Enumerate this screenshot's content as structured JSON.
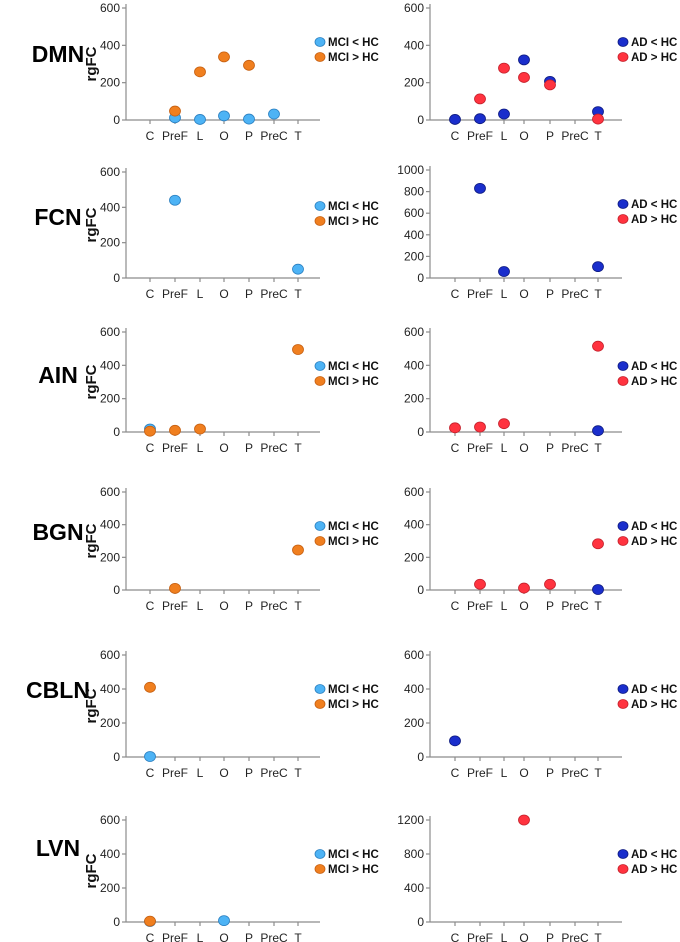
{
  "figure": {
    "network_labels": [
      "DMN",
      "FCN",
      "AIN",
      "BGN",
      "CBLN",
      "LVN"
    ],
    "y_axis_label": "rgFC",
    "colors": {
      "mci_lt_hc": "#4db3f5",
      "mci_gt_hc": "#f07f1f",
      "ad_lt_hc": "#1a2ecc",
      "ad_gt_hc": "#ff333f",
      "axis": "#8c8c8c"
    }
  },
  "chart_data": [
    {
      "type": "scatter",
      "network": "DMN",
      "group": "MCI",
      "categories": [
        "C",
        "PreF",
        "L",
        "O",
        "P",
        "PreC",
        "T"
      ],
      "ylabel": "rgFC",
      "yticks": [
        0,
        200,
        400,
        600
      ],
      "ylim": [
        0,
        620
      ],
      "legend": [
        "MCI < HC",
        "MCI > HC"
      ],
      "series": [
        {
          "name": "MCI < HC",
          "values": [
            null,
            12,
            3,
            22,
            5,
            32,
            null
          ]
        },
        {
          "name": "MCI > HC",
          "values": [
            null,
            48,
            258,
            338,
            293,
            null,
            null
          ]
        }
      ]
    },
    {
      "type": "scatter",
      "network": "DMN",
      "group": "AD",
      "categories": [
        "C",
        "PreF",
        "L",
        "O",
        "P",
        "PreC",
        "T"
      ],
      "ylabel": "",
      "yticks": [
        0,
        200,
        400,
        600
      ],
      "ylim": [
        0,
        620
      ],
      "legend": [
        "AD < HC",
        "AD > HC"
      ],
      "series": [
        {
          "name": "AD < HC",
          "values": [
            3,
            7,
            32,
            322,
            207,
            null,
            45
          ]
        },
        {
          "name": "AD > HC",
          "values": [
            null,
            113,
            278,
            228,
            188,
            null,
            5
          ]
        }
      ]
    },
    {
      "type": "scatter",
      "network": "FCN",
      "group": "MCI",
      "categories": [
        "C",
        "PreF",
        "L",
        "O",
        "P",
        "PreC",
        "T"
      ],
      "ylabel": "rgFC",
      "yticks": [
        0,
        200,
        400,
        600
      ],
      "ylim": [
        0,
        620
      ],
      "legend": [
        "MCI < HC",
        "MCI > HC"
      ],
      "series": [
        {
          "name": "MCI < HC",
          "values": [
            null,
            440,
            null,
            null,
            null,
            null,
            50
          ]
        },
        {
          "name": "MCI > HC",
          "values": [
            null,
            null,
            null,
            null,
            null,
            null,
            null
          ]
        }
      ]
    },
    {
      "type": "scatter",
      "network": "FCN",
      "group": "AD",
      "categories": [
        "C",
        "PreF",
        "L",
        "O",
        "P",
        "PreC",
        "T"
      ],
      "ylabel": "",
      "yticks": [
        0,
        200,
        400,
        600,
        800,
        1000
      ],
      "ylim": [
        0,
        1020
      ],
      "legend": [
        "AD < HC",
        "AD > HC"
      ],
      "series": [
        {
          "name": "AD < HC",
          "values": [
            null,
            830,
            60,
            null,
            null,
            null,
            105
          ]
        },
        {
          "name": "AD > HC",
          "values": [
            null,
            null,
            null,
            null,
            null,
            null,
            null
          ]
        }
      ]
    },
    {
      "type": "scatter",
      "network": "AIN",
      "group": "MCI",
      "categories": [
        "C",
        "PreF",
        "L",
        "O",
        "P",
        "PreC",
        "T"
      ],
      "ylabel": "rgFC",
      "yticks": [
        0,
        200,
        400,
        600
      ],
      "ylim": [
        0,
        620
      ],
      "legend": [
        "MCI < HC",
        "MCI > HC"
      ],
      "series": [
        {
          "name": "MCI < HC",
          "values": [
            18,
            null,
            null,
            null,
            null,
            null,
            null
          ]
        },
        {
          "name": "MCI > HC",
          "values": [
            5,
            10,
            18,
            null,
            null,
            null,
            495
          ]
        }
      ]
    },
    {
      "type": "scatter",
      "network": "AIN",
      "group": "AD",
      "categories": [
        "C",
        "PreF",
        "L",
        "O",
        "P",
        "PreC",
        "T"
      ],
      "ylabel": "",
      "yticks": [
        0,
        200,
        400,
        600
      ],
      "ylim": [
        0,
        620
      ],
      "legend": [
        "AD < HC",
        "AD > HC"
      ],
      "series": [
        {
          "name": "AD < HC",
          "values": [
            null,
            null,
            null,
            null,
            null,
            null,
            8
          ]
        },
        {
          "name": "AD > HC",
          "values": [
            25,
            30,
            50,
            null,
            null,
            null,
            515
          ]
        }
      ]
    },
    {
      "type": "scatter",
      "network": "BGN",
      "group": "MCI",
      "categories": [
        "C",
        "PreF",
        "L",
        "O",
        "P",
        "PreC",
        "T"
      ],
      "ylabel": "rgFC",
      "yticks": [
        0,
        200,
        400,
        600
      ],
      "ylim": [
        0,
        620
      ],
      "legend": [
        "MCI < HC",
        "MCI > HC"
      ],
      "series": [
        {
          "name": "MCI < HC",
          "values": [
            null,
            null,
            null,
            null,
            null,
            null,
            null
          ]
        },
        {
          "name": "MCI > HC",
          "values": [
            null,
            10,
            null,
            null,
            null,
            null,
            245
          ]
        }
      ]
    },
    {
      "type": "scatter",
      "network": "BGN",
      "group": "AD",
      "categories": [
        "C",
        "PreF",
        "L",
        "O",
        "P",
        "PreC",
        "T"
      ],
      "ylabel": "",
      "yticks": [
        0,
        200,
        400,
        600
      ],
      "ylim": [
        0,
        620
      ],
      "legend": [
        "AD < HC",
        "AD > HC"
      ],
      "series": [
        {
          "name": "AD < HC",
          "values": [
            null,
            null,
            null,
            null,
            null,
            null,
            3
          ]
        },
        {
          "name": "AD > HC",
          "values": [
            null,
            35,
            null,
            12,
            35,
            null,
            283
          ]
        }
      ]
    },
    {
      "type": "scatter",
      "network": "CBLN",
      "group": "MCI",
      "categories": [
        "C",
        "PreF",
        "L",
        "O",
        "P",
        "PreC",
        "T"
      ],
      "ylabel": "rgFC",
      "yticks": [
        0,
        200,
        400,
        600
      ],
      "ylim": [
        0,
        620
      ],
      "legend": [
        "MCI < HC",
        "MCI > HC"
      ],
      "series": [
        {
          "name": "MCI < HC",
          "values": [
            3,
            null,
            null,
            null,
            null,
            null,
            null
          ]
        },
        {
          "name": "MCI > HC",
          "values": [
            410,
            null,
            null,
            null,
            null,
            null,
            null
          ]
        }
      ]
    },
    {
      "type": "scatter",
      "network": "CBLN",
      "group": "AD",
      "categories": [
        "C",
        "PreF",
        "L",
        "O",
        "P",
        "PreC",
        "T"
      ],
      "ylabel": "",
      "yticks": [
        0,
        200,
        400,
        600
      ],
      "ylim": [
        0,
        620
      ],
      "legend": [
        "AD < HC",
        "AD > HC"
      ],
      "series": [
        {
          "name": "AD < HC",
          "values": [
            95,
            null,
            null,
            null,
            null,
            null,
            null
          ]
        },
        {
          "name": "AD > HC",
          "values": [
            null,
            null,
            null,
            null,
            null,
            null,
            null
          ]
        }
      ]
    },
    {
      "type": "scatter",
      "network": "LVN",
      "group": "MCI",
      "categories": [
        "C",
        "PreF",
        "L",
        "O",
        "P",
        "PreC",
        "T"
      ],
      "ylabel": "rgFC",
      "yticks": [
        0,
        200,
        400,
        600
      ],
      "ylim": [
        0,
        620
      ],
      "legend": [
        "MCI < HC",
        "MCI > HC"
      ],
      "series": [
        {
          "name": "MCI < HC",
          "values": [
            3,
            null,
            null,
            8,
            null,
            null,
            null
          ]
        },
        {
          "name": "MCI > HC",
          "values": [
            5,
            null,
            null,
            null,
            null,
            null,
            null
          ]
        }
      ]
    },
    {
      "type": "scatter",
      "network": "LVN",
      "group": "AD",
      "categories": [
        "C",
        "PreF",
        "L",
        "O",
        "P",
        "PreC",
        "T"
      ],
      "ylabel": "",
      "yticks": [
        0,
        400,
        800,
        1200
      ],
      "ylim": [
        0,
        1240
      ],
      "legend": [
        "AD < HC",
        "AD > HC"
      ],
      "series": [
        {
          "name": "AD < HC",
          "values": [
            null,
            null,
            null,
            null,
            null,
            null,
            null
          ]
        },
        {
          "name": "AD > HC",
          "values": [
            null,
            null,
            null,
            1200,
            null,
            null,
            null
          ]
        }
      ]
    }
  ]
}
